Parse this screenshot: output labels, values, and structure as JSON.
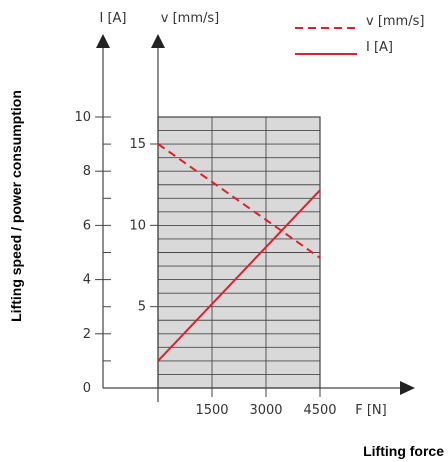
{
  "chart_data": {
    "type": "line",
    "xlabel": "Lifting force",
    "ylabel": "Lifting speed / power consumption",
    "x_axis": {
      "label": "F [N]",
      "ticks": [
        1500,
        3000,
        4500
      ],
      "range": [
        0,
        4500
      ]
    },
    "y_axes": [
      {
        "id": "current",
        "label": "I [A]",
        "ticks": [
          0,
          2,
          4,
          6,
          8,
          10
        ],
        "range": [
          0,
          10
        ]
      },
      {
        "id": "speed",
        "label": "v [mm/s]",
        "ticks": [
          5,
          10,
          15
        ],
        "range": [
          0,
          15
        ]
      }
    ],
    "series": [
      {
        "name": "v [mm/s]",
        "axis": "speed",
        "style": "dashed",
        "color": "#e0202a",
        "x": [
          0,
          4500
        ],
        "values": [
          15,
          8
        ]
      },
      {
        "name": "I [A]",
        "axis": "current",
        "style": "solid",
        "color": "#e0202a",
        "x": [
          0,
          4500
        ],
        "values": [
          1,
          7.3
        ]
      }
    ],
    "legend": {
      "placement": "top-right",
      "entries": [
        "v [mm/s]",
        "I [A]"
      ]
    },
    "shaded_region": {
      "color": "#d9d9d9",
      "x_range": [
        0,
        4500
      ],
      "y_range": [
        0,
        10
      ]
    },
    "grid": true
  }
}
